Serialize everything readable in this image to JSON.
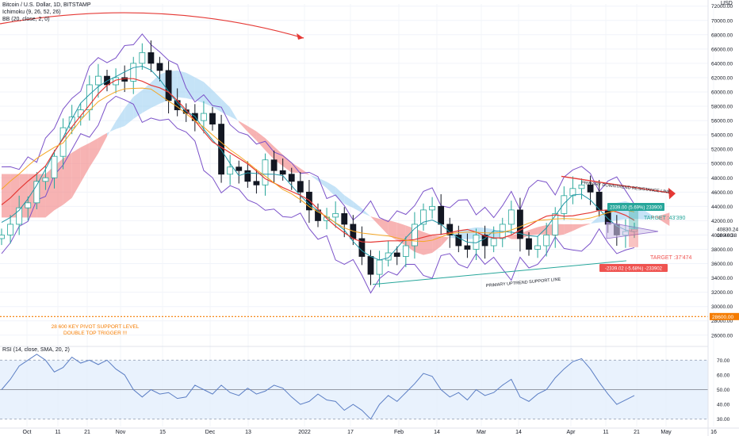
{
  "header": {
    "symbol_line": "Bitcoin / U.S. Dollar, 1D, BITSTAMP",
    "ichimoku_line": "Ichimoku (9, 26, 52, 26)",
    "bb_line": "BB (20, close, 2, 0)",
    "rsi_line": "RSI (14, close, SMA, 20, 2)",
    "currency": "USD"
  },
  "chart_data": [
    {
      "type": "candlestick",
      "title": "Bitcoin / U.S. Dollar, 1D, BITSTAMP",
      "y_ticks": [
        72000,
        70000,
        68000,
        66000,
        64000,
        62000,
        60000,
        58000,
        56000,
        54000,
        52000,
        50000,
        48000,
        46000,
        44000,
        42000,
        40000,
        38000,
        36000,
        34000,
        32000,
        30000,
        28000,
        26000
      ],
      "y_tick_labels": [
        "72000.00",
        "70000.00",
        "68000.00",
        "66000.00",
        "64000.00",
        "62000.00",
        "60000.00",
        "58000.00",
        "56000.00",
        "54000.00",
        "52000.00",
        "50000.00",
        "48000.00",
        "46000.00",
        "44000.00",
        "42000.00",
        "40000.00",
        "38000.00",
        "36000.00",
        "34000.00",
        "32000.00",
        "30000.00",
        "28000.00",
        "26000.00"
      ],
      "ylim": [
        25200,
        72300
      ],
      "x_tick_labels": [
        "Oct",
        "11",
        "21",
        "Nov",
        "15",
        "Dec",
        "13",
        "2022",
        "17",
        "Feb",
        "14",
        "Mar",
        "14",
        "Apr",
        "11",
        "21",
        "May",
        "16"
      ],
      "price_series_approx": [
        40000,
        41500,
        43800,
        44500,
        47500,
        48000,
        51000,
        55000,
        56500,
        57500,
        61000,
        62200,
        61000,
        62000,
        61500,
        64000,
        65500,
        64000,
        63000,
        58800,
        57500,
        57000,
        56000,
        57000,
        55500,
        48500,
        49500,
        49000,
        47500,
        47000,
        50500,
        49000,
        48500,
        47500,
        46000,
        43500,
        42000,
        42500,
        43000,
        41500,
        39500,
        37000,
        34500,
        36500,
        37500,
        37000,
        38500,
        41500,
        43500,
        44000,
        41500,
        40000,
        38500,
        38000,
        40000,
        38500,
        39500,
        41500,
        43500,
        39500,
        38000,
        38500,
        40000,
        43000,
        45500,
        46500,
        47000,
        46000,
        43500,
        41500,
        40000,
        40500,
        40830
      ],
      "current_price_label": "40830.24",
      "countdown_label": "18:46:38",
      "annotations": [
        {
          "text": "PRIMARY DOWNTREND RESISTANCE LINE",
          "color": "#131722"
        },
        {
          "text": "PRIMARY UPTREND SUPPORT LINE",
          "color": "#131722"
        },
        {
          "text": "28 600 KEY PIVOT SUPPORT LEVEL",
          "color": "#f57c00"
        },
        {
          "text": "DOUBLE TOP TRIGGER !!!",
          "color": "#f57c00"
        },
        {
          "text": "TARGET :43'390",
          "color": "#26a69a"
        },
        {
          "text": "TARGET :37'474",
          "color": "#ef5350"
        },
        {
          "text": "2339.00 (5.69%) 233900",
          "color": "#ffffff"
        },
        {
          "text": "-2339.02 (-5.68%) -233902",
          "color": "#ffffff"
        }
      ],
      "pivot_level": 28600,
      "pivot_label": "28600.00",
      "up_color": "#26a69a",
      "down_color": "#131722",
      "cloud_bull_color": "#a6d4f2",
      "cloud_bear_color": "#f28b8b"
    },
    {
      "type": "line",
      "title": "RSI (14, close, SMA, 20, 2)",
      "y_tick_labels": [
        "70.00",
        "60.00",
        "50.00",
        "40.00",
        "30.00"
      ],
      "y_ticks": [
        70,
        60,
        50,
        40,
        30
      ],
      "ylim": [
        25,
        75
      ],
      "band": [
        30,
        70
      ],
      "mid_label": "50.00",
      "values_approx": [
        50,
        57,
        66,
        70,
        74,
        70,
        62,
        65,
        72,
        68,
        70,
        67,
        70,
        64,
        60,
        50,
        45,
        50,
        47,
        48,
        44,
        45,
        53,
        50,
        47,
        53,
        48,
        46,
        51,
        47,
        49,
        53,
        51,
        45,
        40,
        42,
        47,
        43,
        42,
        36,
        40,
        36,
        30,
        40,
        46,
        42,
        48,
        54,
        61,
        59,
        50,
        45,
        48,
        43,
        50,
        46,
        48,
        53,
        57,
        45,
        42,
        47,
        50,
        58,
        64,
        69,
        71,
        64,
        55,
        47,
        40,
        43,
        46
      ],
      "line_color": "#5b7ec4"
    }
  ]
}
